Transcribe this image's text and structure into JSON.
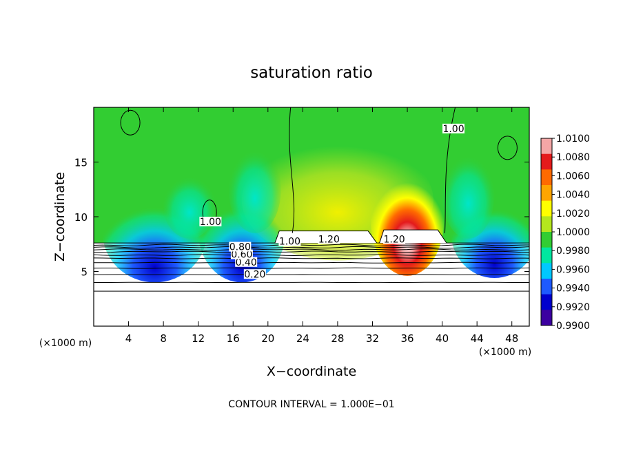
{
  "chart_data": {
    "type": "heatmap",
    "title": "saturation ratio",
    "xlabel": "X−coordinate",
    "ylabel": "Z−coordinate",
    "x_unit_left": "(×1000 m)",
    "x_unit_right": "(×1000 m)",
    "footer": "CONTOUR INTERVAL = 1.000E−01",
    "xlim": [
      0,
      50
    ],
    "ylim": [
      0,
      20
    ],
    "x_ticks": [
      4,
      8,
      12,
      16,
      20,
      24,
      28,
      32,
      36,
      40,
      44,
      48
    ],
    "y_ticks": [
      5,
      10,
      15
    ],
    "colorbar": {
      "range": [
        0.99,
        1.01
      ],
      "labels": [
        "1.0100",
        "1.0080",
        "1.0060",
        "1.0040",
        "1.0020",
        "1.0000",
        "0.9980",
        "0.9960",
        "0.9940",
        "0.9920",
        "0.9900"
      ],
      "colors": [
        "#f4a6a6",
        "#e41a1c",
        "#ff6a00",
        "#ffa500",
        "#ffff00",
        "#b4e61e",
        "#32cd32",
        "#00e6a0",
        "#00c8ff",
        "#1e5aff",
        "#0000cd",
        "#3c00a0"
      ]
    },
    "contour_levels": [
      {
        "label": "0.20",
        "z": 4.7,
        "x": 18.5
      },
      {
        "label": "0.40",
        "z": 5.8,
        "x": 17.5
      },
      {
        "label": "0.60",
        "z": 6.5,
        "x": 17.0
      },
      {
        "label": "0.80",
        "z": 7.2,
        "x": 16.8
      },
      {
        "label": "1.00",
        "z": 7.7,
        "x": 22.5
      },
      {
        "label": "1.20",
        "z": 7.9,
        "x": 27.0
      },
      {
        "label": "1.20",
        "z": 7.9,
        "x": 34.5
      },
      {
        "label": "1.00",
        "z": 18.0,
        "x": 41.3
      },
      {
        "label": "1.00",
        "z": 9.5,
        "x": 13.4
      }
    ],
    "low_level_contours_z": [
      3.2,
      4.0,
      4.7,
      5.3,
      5.8,
      6.2,
      6.5,
      6.8,
      7.0,
      7.2,
      7.4
    ],
    "cloud_base_z": 7.6
  }
}
